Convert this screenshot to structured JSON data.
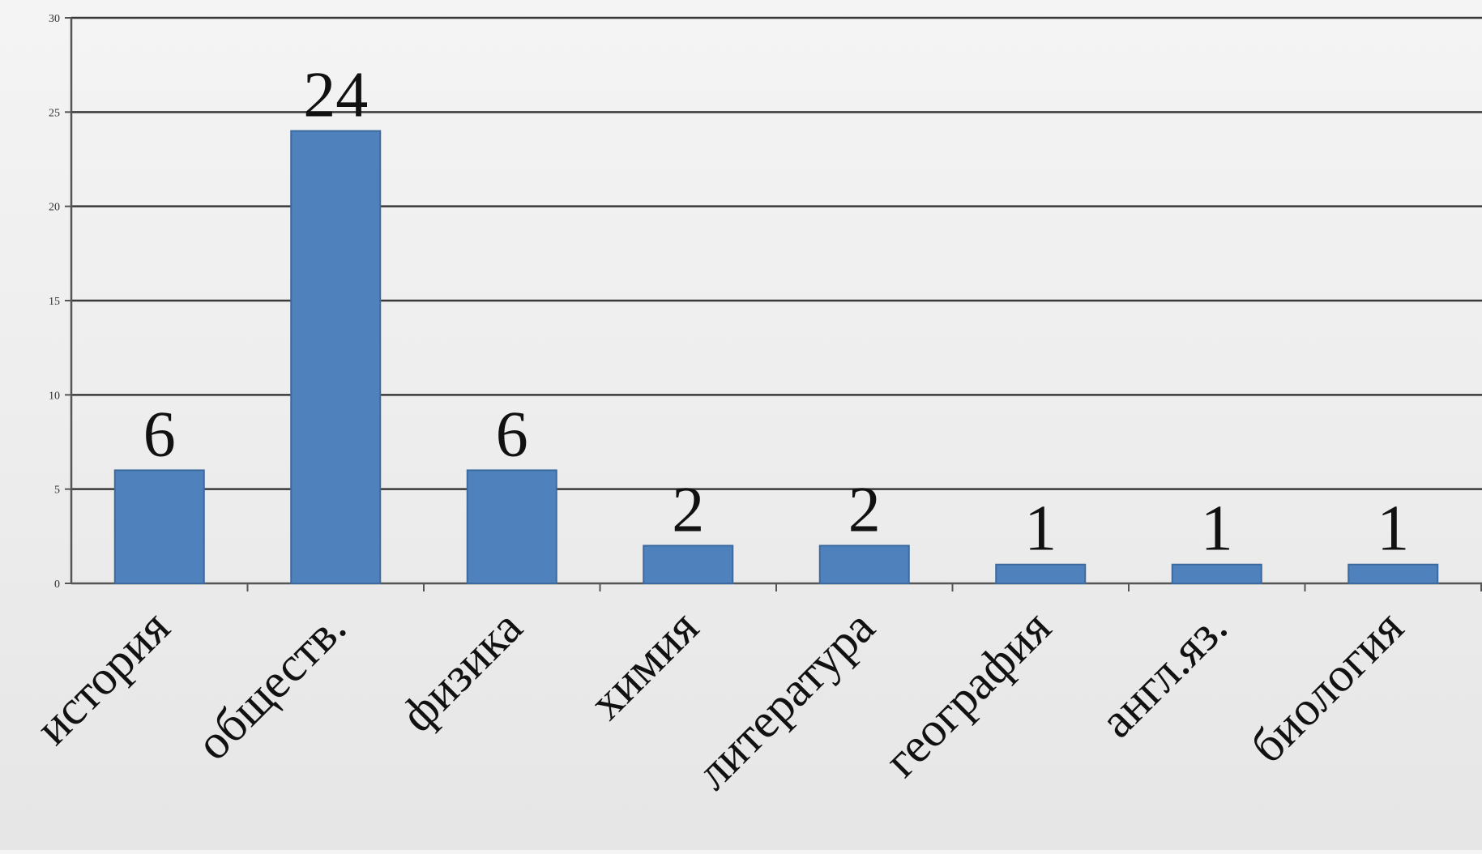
{
  "chart_data": {
    "type": "bar",
    "title": "",
    "xlabel": "",
    "ylabel": "",
    "categories": [
      "история",
      "обществ.",
      "физика",
      "химия",
      "литература",
      "география",
      "англ.яз.",
      "биология"
    ],
    "values": [
      6,
      24,
      6,
      2,
      2,
      1,
      1,
      1
    ],
    "data_labels": [
      "6",
      "24",
      "6",
      "2",
      "2",
      "1",
      "1",
      "1"
    ],
    "ylim": [
      0,
      30
    ],
    "yticks": [
      0,
      5,
      10,
      15,
      20,
      25,
      30
    ],
    "ytick_labels": [
      "0",
      "5",
      "10",
      "15",
      "20",
      "25",
      "30"
    ],
    "grid": true,
    "legend": "none",
    "bar_color": "#4f81bd",
    "bar_border_color": "#3d6a9e"
  }
}
